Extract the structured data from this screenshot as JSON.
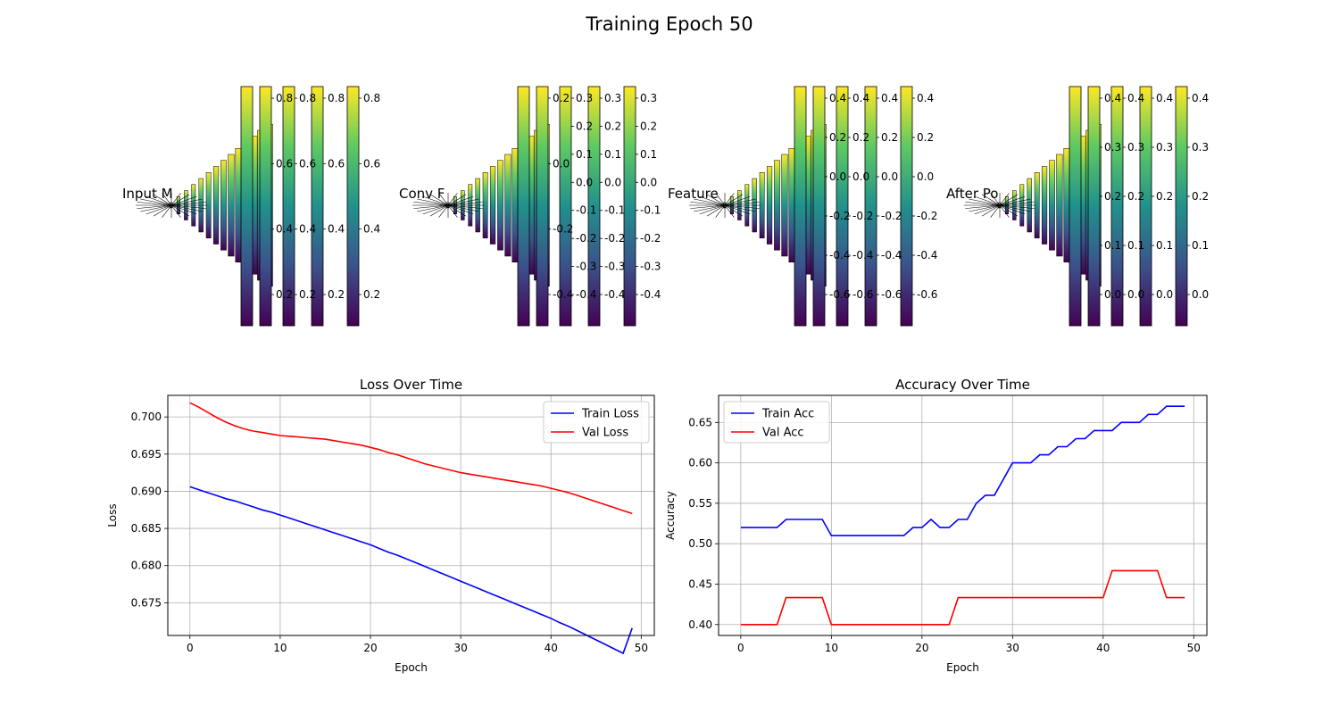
{
  "figure": {
    "suptitle": "Training Epoch 50"
  },
  "colors": {
    "train": "#0000ff",
    "val": "#ff0000",
    "grid": "#b0b0b0",
    "colormap": [
      "#440154",
      "#3b528b",
      "#21918c",
      "#5ec962",
      "#fde725"
    ]
  },
  "panels": [
    {
      "title": "Input M",
      "ticks": [
        [
          "0.2",
          "0.4",
          "0.6",
          "0.8"
        ],
        [
          "0.2",
          "0.4",
          "0.6",
          "0.8"
        ],
        [
          "0.2",
          "0.4",
          "0.6",
          "0.8"
        ],
        [
          "0.2",
          "0.4",
          "0.6",
          "0.8"
        ]
      ]
    },
    {
      "title": "Conv F",
      "ticks": [
        [
          "-0.4",
          "-0.2",
          "0.0",
          "0.2"
        ],
        [
          "-0.4",
          "-0.3",
          "-0.2",
          "-0.1",
          "0.0",
          "0.1",
          "0.2",
          "0.3"
        ],
        [
          "-0.4",
          "-0.3",
          "-0.2",
          "-0.1",
          "0.0",
          "0.1",
          "0.2",
          "0.3"
        ],
        [
          "-0.4",
          "-0.3",
          "-0.2",
          "-0.1",
          "0.0",
          "0.1",
          "0.2",
          "0.3"
        ]
      ]
    },
    {
      "title": "Feature",
      "ticks": [
        [
          "-0.6",
          "-0.4",
          "-0.2",
          "0.0",
          "0.2",
          "0.4"
        ],
        [
          "-0.6",
          "-0.4",
          "-0.2",
          "0.0",
          "0.2",
          "0.4"
        ],
        [
          "-0.6",
          "-0.4",
          "-0.2",
          "0.0",
          "0.2",
          "0.4"
        ],
        [
          "-0.6",
          "-0.4",
          "-0.2",
          "0.0",
          "0.2",
          "0.4"
        ]
      ]
    },
    {
      "title": "After Po",
      "ticks": [
        [
          "0.0",
          "0.1",
          "0.2",
          "0.3",
          "0.4"
        ],
        [
          "0.0",
          "0.1",
          "0.2",
          "0.3",
          "0.4"
        ],
        [
          "0.0",
          "0.1",
          "0.2",
          "0.3",
          "0.4"
        ],
        [
          "0.0",
          "0.1",
          "0.2",
          "0.3",
          "0.4"
        ]
      ]
    }
  ],
  "chart_data": [
    {
      "type": "line",
      "title": "Loss Over Time",
      "xlabel": "Epoch",
      "ylabel": "Loss",
      "xlim": [
        -2.45,
        51.45
      ],
      "ylim": [
        0.6706,
        0.7029
      ],
      "xticks": [
        0,
        10,
        20,
        30,
        40,
        50
      ],
      "yticks": [
        0.675,
        0.68,
        0.685,
        0.69,
        0.695,
        0.7
      ],
      "ytick_labels": [
        "0.675",
        "0.680",
        "0.685",
        "0.690",
        "0.695",
        "0.700"
      ],
      "grid": true,
      "legend": "upper right",
      "x": [
        0,
        1,
        2,
        3,
        4,
        5,
        6,
        7,
        8,
        9,
        10,
        11,
        12,
        13,
        14,
        15,
        16,
        17,
        18,
        19,
        20,
        21,
        22,
        23,
        24,
        25,
        26,
        27,
        28,
        29,
        30,
        31,
        32,
        33,
        34,
        35,
        36,
        37,
        38,
        39,
        40,
        41,
        42,
        43,
        44,
        45,
        46,
        47,
        48,
        49
      ],
      "series": [
        {
          "name": "Train Loss",
          "color": "#0000ff",
          "values": [
            0.6906,
            0.6902,
            0.6898,
            0.6894,
            0.689,
            0.6887,
            0.6883,
            0.6879,
            0.6875,
            0.6872,
            0.6868,
            0.6864,
            0.686,
            0.6856,
            0.6852,
            0.6848,
            0.6844,
            0.684,
            0.6836,
            0.6832,
            0.6828,
            0.6823,
            0.6818,
            0.6814,
            0.6809,
            0.6804,
            0.6799,
            0.6794,
            0.6789,
            0.6784,
            0.6779,
            0.6774,
            0.6769,
            0.6764,
            0.6759,
            0.6754,
            0.6749,
            0.6744,
            0.6739,
            0.6734,
            0.6729,
            0.6723,
            0.6718,
            0.6712,
            0.6706,
            0.67,
            0.6694,
            0.6688,
            0.6682,
            0.6716
          ]
        },
        {
          "name": "Val Loss",
          "color": "#ff0000",
          "values": [
            0.7019,
            0.7013,
            0.7006,
            0.6999,
            0.6993,
            0.6988,
            0.6984,
            0.6981,
            0.6979,
            0.6977,
            0.6975,
            0.6974,
            0.6973,
            0.6972,
            0.6971,
            0.697,
            0.6968,
            0.6966,
            0.6964,
            0.6962,
            0.6959,
            0.6956,
            0.6952,
            0.6949,
            0.6945,
            0.6941,
            0.6937,
            0.6934,
            0.6931,
            0.6928,
            0.6925,
            0.6923,
            0.6921,
            0.6919,
            0.6917,
            0.6915,
            0.6913,
            0.6911,
            0.6909,
            0.6907,
            0.6904,
            0.6901,
            0.6898,
            0.6894,
            0.689,
            0.6886,
            0.6882,
            0.6878,
            0.6874,
            0.687
          ]
        }
      ]
    },
    {
      "type": "line",
      "title": "Accuracy Over Time",
      "xlabel": "Epoch",
      "ylabel": "Accuracy",
      "xlim": [
        -2.45,
        51.45
      ],
      "ylim": [
        0.3865,
        0.6835
      ],
      "xticks": [
        0,
        10,
        20,
        30,
        40,
        50
      ],
      "yticks": [
        0.4,
        0.45,
        0.5,
        0.55,
        0.6,
        0.65
      ],
      "ytick_labels": [
        "0.40",
        "0.45",
        "0.50",
        "0.55",
        "0.60",
        "0.65"
      ],
      "grid": true,
      "legend": "upper left",
      "x": [
        0,
        1,
        2,
        3,
        4,
        5,
        6,
        7,
        8,
        9,
        10,
        11,
        12,
        13,
        14,
        15,
        16,
        17,
        18,
        19,
        20,
        21,
        22,
        23,
        24,
        25,
        26,
        27,
        28,
        29,
        30,
        31,
        32,
        33,
        34,
        35,
        36,
        37,
        38,
        39,
        40,
        41,
        42,
        43,
        44,
        45,
        46,
        47,
        48,
        49
      ],
      "series": [
        {
          "name": "Train Acc",
          "color": "#0000ff",
          "values": [
            0.52,
            0.52,
            0.52,
            0.52,
            0.52,
            0.53,
            0.53,
            0.53,
            0.53,
            0.53,
            0.51,
            0.51,
            0.51,
            0.51,
            0.51,
            0.51,
            0.51,
            0.51,
            0.51,
            0.52,
            0.52,
            0.53,
            0.52,
            0.52,
            0.53,
            0.53,
            0.55,
            0.56,
            0.56,
            0.58,
            0.6,
            0.6,
            0.6,
            0.61,
            0.61,
            0.62,
            0.62,
            0.63,
            0.63,
            0.64,
            0.64,
            0.64,
            0.65,
            0.65,
            0.65,
            0.66,
            0.66,
            0.67,
            0.67,
            0.67
          ]
        },
        {
          "name": "Val Acc",
          "color": "#ff0000",
          "values": [
            0.4,
            0.4,
            0.4,
            0.4,
            0.4,
            0.4333,
            0.4333,
            0.4333,
            0.4333,
            0.4333,
            0.4,
            0.4,
            0.4,
            0.4,
            0.4,
            0.4,
            0.4,
            0.4,
            0.4,
            0.4,
            0.4,
            0.4,
            0.4,
            0.4,
            0.4333,
            0.4333,
            0.4333,
            0.4333,
            0.4333,
            0.4333,
            0.4333,
            0.4333,
            0.4333,
            0.4333,
            0.4333,
            0.4333,
            0.4333,
            0.4333,
            0.4333,
            0.4333,
            0.4333,
            0.4667,
            0.4667,
            0.4667,
            0.4667,
            0.4667,
            0.4667,
            0.4333,
            0.4333,
            0.4333
          ]
        }
      ]
    }
  ]
}
